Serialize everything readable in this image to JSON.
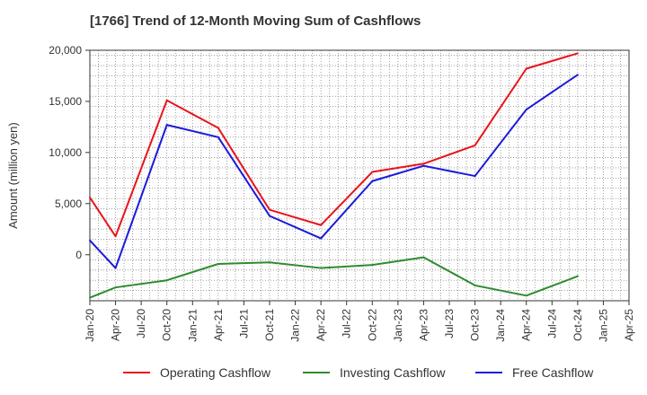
{
  "chart_data": {
    "type": "line",
    "title": "[1766]  Trend of 12-Month Moving Sum of Cashflows",
    "ylabel": "Amount (million yen)",
    "xlabel": "",
    "ylim": [
      -4500,
      20000
    ],
    "yticks": [
      0,
      5000,
      10000,
      15000,
      20000
    ],
    "ytick_labels": [
      "0",
      "5,000",
      "10,000",
      "15,000",
      "20,000"
    ],
    "categories": [
      "Jan-20",
      "Apr-20",
      "Jul-20",
      "Oct-20",
      "Jan-21",
      "Apr-21",
      "Jul-21",
      "Oct-21",
      "Jan-22",
      "Apr-22",
      "Jul-22",
      "Oct-22",
      "Jan-23",
      "Apr-23",
      "Jul-23",
      "Oct-23",
      "Jan-24",
      "Apr-24",
      "Jul-24",
      "Oct-24",
      "Jan-25",
      "Apr-25"
    ],
    "grid": true,
    "legend_position": "bottom",
    "series": [
      {
        "name": "Operating Cashflow",
        "color": "#e8141b",
        "values": [
          5600,
          1800,
          null,
          15100,
          null,
          12400,
          null,
          4400,
          null,
          2900,
          null,
          8100,
          null,
          8900,
          null,
          10700,
          null,
          18200,
          null,
          19700,
          null,
          null
        ]
      },
      {
        "name": "Investing Cashflow",
        "color": "#2e8b2e",
        "values": [
          -4200,
          -3200,
          null,
          -2500,
          null,
          -900,
          null,
          -750,
          null,
          -1300,
          null,
          -1000,
          null,
          -250,
          null,
          -3000,
          null,
          -4000,
          null,
          -2100,
          null,
          null
        ]
      },
      {
        "name": "Free Cashflow",
        "color": "#1a1adb",
        "values": [
          1400,
          -1300,
          null,
          12700,
          null,
          11500,
          null,
          3800,
          null,
          1600,
          null,
          7200,
          null,
          8700,
          null,
          7700,
          null,
          14200,
          null,
          17600,
          null,
          null
        ]
      }
    ]
  }
}
